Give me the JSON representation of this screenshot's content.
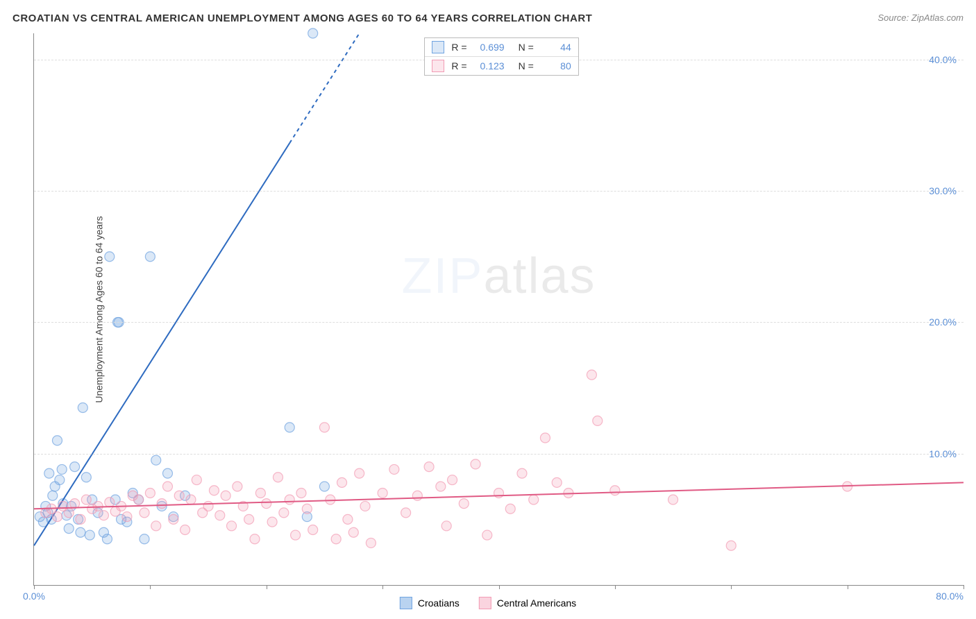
{
  "title": "CROATIAN VS CENTRAL AMERICAN UNEMPLOYMENT AMONG AGES 60 TO 64 YEARS CORRELATION CHART",
  "source": "Source: ZipAtlas.com",
  "watermark_zip": "ZIP",
  "watermark_atlas": "atlas",
  "chart": {
    "type": "scatter",
    "ylabel": "Unemployment Among Ages 60 to 64 years",
    "xlim": [
      0,
      80
    ],
    "ylim": [
      0,
      42
    ],
    "xtick_positions": [
      0,
      10,
      20,
      30,
      40,
      50,
      60,
      70,
      80
    ],
    "xtick_labels": {
      "0": "0.0%",
      "80": "80.0%"
    },
    "ytick_positions": [
      10,
      20,
      30,
      40
    ],
    "ytick_labels": {
      "10": "10.0%",
      "20": "20.0%",
      "30": "30.0%",
      "40": "40.0%"
    },
    "grid_color": "#dddddd",
    "background_color": "#ffffff",
    "marker_radius": 7,
    "marker_fill_opacity": 0.25,
    "marker_stroke_opacity": 0.7,
    "line_width": 2,
    "series": [
      {
        "name": "Croatians",
        "color": "#6fa3e0",
        "line_color": "#2e6bc0",
        "r": "0.699",
        "n": "44",
        "trend": {
          "x1": 0,
          "y1": 3.0,
          "x2": 28,
          "y2": 42.0,
          "dashed_after_x": 22
        },
        "points": [
          [
            0.5,
            5.2
          ],
          [
            0.8,
            4.8
          ],
          [
            1.0,
            6.0
          ],
          [
            1.2,
            5.5
          ],
          [
            1.3,
            8.5
          ],
          [
            1.5,
            5.0
          ],
          [
            1.6,
            6.8
          ],
          [
            1.8,
            7.5
          ],
          [
            2.0,
            11.0
          ],
          [
            2.2,
            8.0
          ],
          [
            2.4,
            8.8
          ],
          [
            2.5,
            6.2
          ],
          [
            2.8,
            5.3
          ],
          [
            3.0,
            4.3
          ],
          [
            3.2,
            6.0
          ],
          [
            3.5,
            9.0
          ],
          [
            3.8,
            5.0
          ],
          [
            4.0,
            4.0
          ],
          [
            4.2,
            13.5
          ],
          [
            4.5,
            8.2
          ],
          [
            4.8,
            3.8
          ],
          [
            5.0,
            6.5
          ],
          [
            5.5,
            5.5
          ],
          [
            6.0,
            4.0
          ],
          [
            6.3,
            3.5
          ],
          [
            6.5,
            25.0
          ],
          [
            7.0,
            6.5
          ],
          [
            7.2,
            20.0
          ],
          [
            7.3,
            20.0
          ],
          [
            7.5,
            5.0
          ],
          [
            8.0,
            4.8
          ],
          [
            8.5,
            7.0
          ],
          [
            9.0,
            6.5
          ],
          [
            9.5,
            3.5
          ],
          [
            10.0,
            25.0
          ],
          [
            10.5,
            9.5
          ],
          [
            11.0,
            6.0
          ],
          [
            11.5,
            8.5
          ],
          [
            12.0,
            5.2
          ],
          [
            13.0,
            6.8
          ],
          [
            22.0,
            12.0
          ],
          [
            23.5,
            5.2
          ],
          [
            24.0,
            42.0
          ],
          [
            25.0,
            7.5
          ]
        ]
      },
      {
        "name": "Central Americans",
        "color": "#f29bb4",
        "line_color": "#e05a84",
        "r": "0.123",
        "n": "80",
        "trend": {
          "x1": 0,
          "y1": 5.8,
          "x2": 80,
          "y2": 7.8,
          "dashed_after_x": null
        },
        "points": [
          [
            1.0,
            5.5
          ],
          [
            1.5,
            5.8
          ],
          [
            2.0,
            5.2
          ],
          [
            2.5,
            6.0
          ],
          [
            3.0,
            5.5
          ],
          [
            3.5,
            6.2
          ],
          [
            4.0,
            5.0
          ],
          [
            4.5,
            6.5
          ],
          [
            5.0,
            5.8
          ],
          [
            5.5,
            6.0
          ],
          [
            6.0,
            5.3
          ],
          [
            6.5,
            6.3
          ],
          [
            7.0,
            5.6
          ],
          [
            7.5,
            6.0
          ],
          [
            8.0,
            5.2
          ],
          [
            8.5,
            6.8
          ],
          [
            9.0,
            6.5
          ],
          [
            9.5,
            5.5
          ],
          [
            10.0,
            7.0
          ],
          [
            10.5,
            4.5
          ],
          [
            11.0,
            6.2
          ],
          [
            11.5,
            7.5
          ],
          [
            12.0,
            5.0
          ],
          [
            12.5,
            6.8
          ],
          [
            13.0,
            4.2
          ],
          [
            13.5,
            6.5
          ],
          [
            14.0,
            8.0
          ],
          [
            14.5,
            5.5
          ],
          [
            15.0,
            6.0
          ],
          [
            15.5,
            7.2
          ],
          [
            16.0,
            5.3
          ],
          [
            16.5,
            6.8
          ],
          [
            17.0,
            4.5
          ],
          [
            17.5,
            7.5
          ],
          [
            18.0,
            6.0
          ],
          [
            18.5,
            5.0
          ],
          [
            19.0,
            3.5
          ],
          [
            19.5,
            7.0
          ],
          [
            20.0,
            6.2
          ],
          [
            20.5,
            4.8
          ],
          [
            21.0,
            8.2
          ],
          [
            21.5,
            5.5
          ],
          [
            22.0,
            6.5
          ],
          [
            22.5,
            3.8
          ],
          [
            23.0,
            7.0
          ],
          [
            23.5,
            5.8
          ],
          [
            24.0,
            4.2
          ],
          [
            25.0,
            12.0
          ],
          [
            25.5,
            6.5
          ],
          [
            26.0,
            3.5
          ],
          [
            26.5,
            7.8
          ],
          [
            27.0,
            5.0
          ],
          [
            27.5,
            4.0
          ],
          [
            28.0,
            8.5
          ],
          [
            28.5,
            6.0
          ],
          [
            29.0,
            3.2
          ],
          [
            30.0,
            7.0
          ],
          [
            31.0,
            8.8
          ],
          [
            32.0,
            5.5
          ],
          [
            33.0,
            6.8
          ],
          [
            34.0,
            9.0
          ],
          [
            35.0,
            7.5
          ],
          [
            35.5,
            4.5
          ],
          [
            36.0,
            8.0
          ],
          [
            37.0,
            6.2
          ],
          [
            38.0,
            9.2
          ],
          [
            39.0,
            3.8
          ],
          [
            40.0,
            7.0
          ],
          [
            41.0,
            5.8
          ],
          [
            42.0,
            8.5
          ],
          [
            43.0,
            6.5
          ],
          [
            44.0,
            11.2
          ],
          [
            45.0,
            7.8
          ],
          [
            46.0,
            7.0
          ],
          [
            48.0,
            16.0
          ],
          [
            48.5,
            12.5
          ],
          [
            50.0,
            7.2
          ],
          [
            55.0,
            6.5
          ],
          [
            60.0,
            3.0
          ],
          [
            70.0,
            7.5
          ]
        ]
      }
    ],
    "legend": {
      "items": [
        {
          "label": "Croatians",
          "color": "#6fa3e0",
          "fill": "#b9d3f0"
        },
        {
          "label": "Central Americans",
          "color": "#f29bb4",
          "fill": "#fad4df"
        }
      ]
    }
  }
}
